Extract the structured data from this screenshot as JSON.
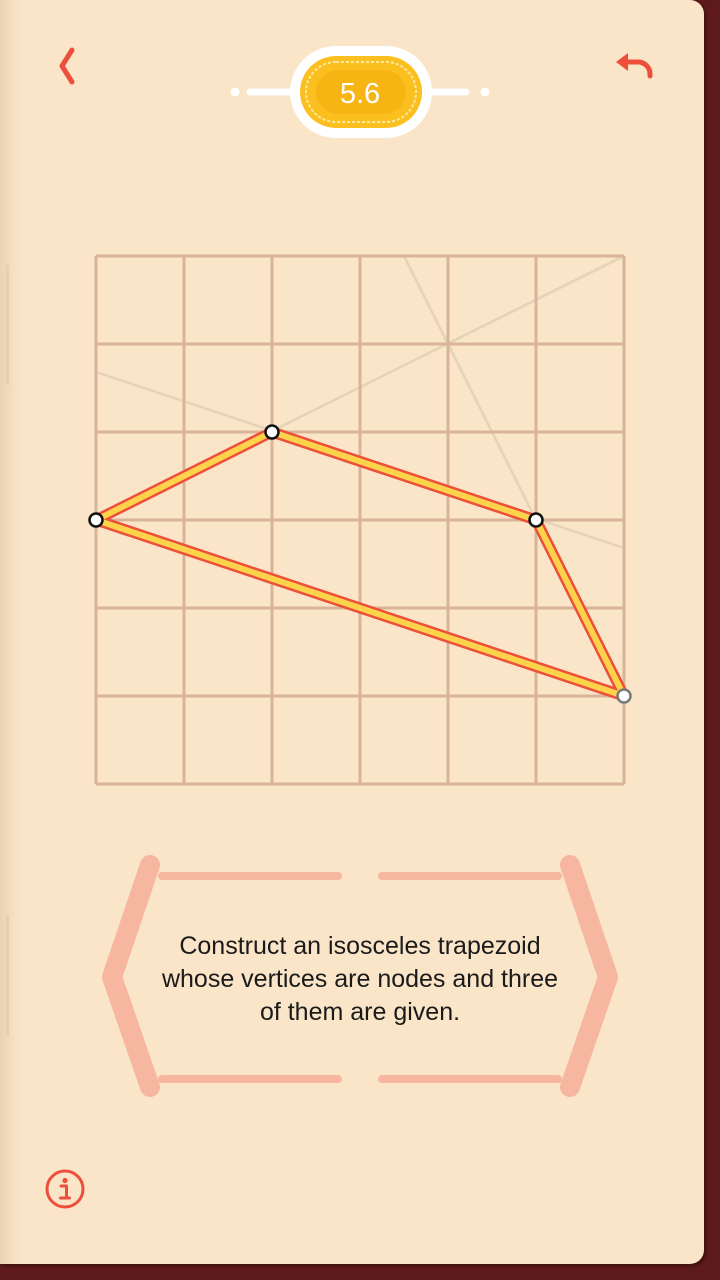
{
  "header": {
    "level_label": "5.6",
    "back_icon": "chevron-left-icon",
    "undo_icon": "undo-icon"
  },
  "puzzle": {
    "instruction": "Construct an isosceles trapezoid whose vertices are nodes and three of them are given.",
    "grid": {
      "columns": 6,
      "rows": 6
    },
    "vertices": [
      {
        "col": 0,
        "row": 3
      },
      {
        "col": 2,
        "row": 2
      },
      {
        "col": 5,
        "row": 3
      },
      {
        "col": 6,
        "row": 5
      }
    ],
    "active_vertex": 3
  },
  "footer": {
    "info_icon": "info-icon"
  },
  "colors": {
    "background": "#fae5c8",
    "grid_line": "#d9b597",
    "guide_line": "#e6d2b6",
    "accent_red": "#ee4f3b",
    "polygon_fill": "#fcd34a",
    "polygon_stroke": "#ee4f3b",
    "badge_gold": "#fbbf1f",
    "hint_frame": "#f6b6a0",
    "book_cover": "#5e1a1a"
  }
}
